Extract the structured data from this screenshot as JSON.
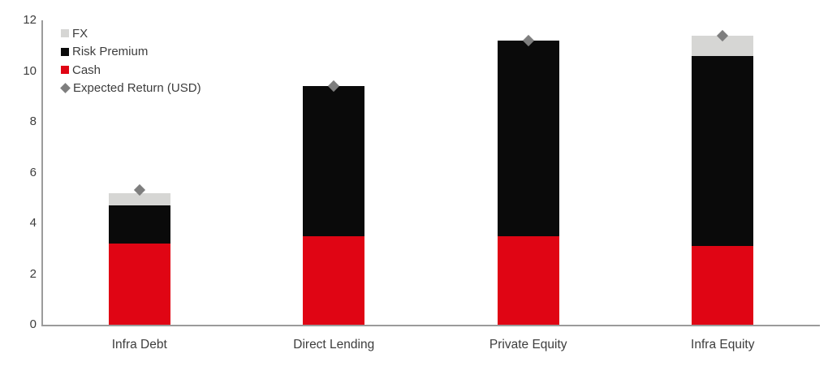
{
  "legend": {
    "position": "top-left",
    "items": [
      {
        "label": "FX",
        "marker": "square",
        "color": "#d6d6d4"
      },
      {
        "label": "Risk Premium",
        "marker": "square",
        "color": "#0a0a0a"
      },
      {
        "label": "Cash",
        "marker": "square",
        "color": "#e00514"
      },
      {
        "label": "Expected Return (USD)",
        "marker": "diamond",
        "color": "#7e7e7e"
      }
    ]
  },
  "chart_data": {
    "type": "bar",
    "stacked": true,
    "categories": [
      "Infra Debt",
      "Direct Lending",
      "Private Equity",
      "Infra Equity"
    ],
    "series": [
      {
        "name": "Cash",
        "color": "#e00514",
        "values": [
          3.2,
          3.5,
          3.5,
          3.1
        ]
      },
      {
        "name": "Risk Premium",
        "color": "#0a0a0a",
        "values": [
          1.5,
          5.9,
          7.7,
          7.5
        ]
      },
      {
        "name": "FX",
        "color": "#d6d6d4",
        "values": [
          0.5,
          0,
          0,
          0.8
        ]
      }
    ],
    "point_series": {
      "name": "Expected Return (USD)",
      "shape": "diamond",
      "color": "#7e7e7e",
      "values": [
        5.3,
        9.4,
        11.2,
        11.4
      ]
    },
    "xlabel": "",
    "ylabel": "",
    "y_axis": {
      "min": 0,
      "max": 12,
      "tick_step": 2,
      "ticks": [
        0,
        2,
        4,
        6,
        8,
        10,
        12
      ]
    },
    "grid": false,
    "legend_position": "top-left"
  },
  "colors": {
    "axis": "#9b9b9b",
    "text": "#3d3d3d",
    "background": "#ffffff"
  }
}
